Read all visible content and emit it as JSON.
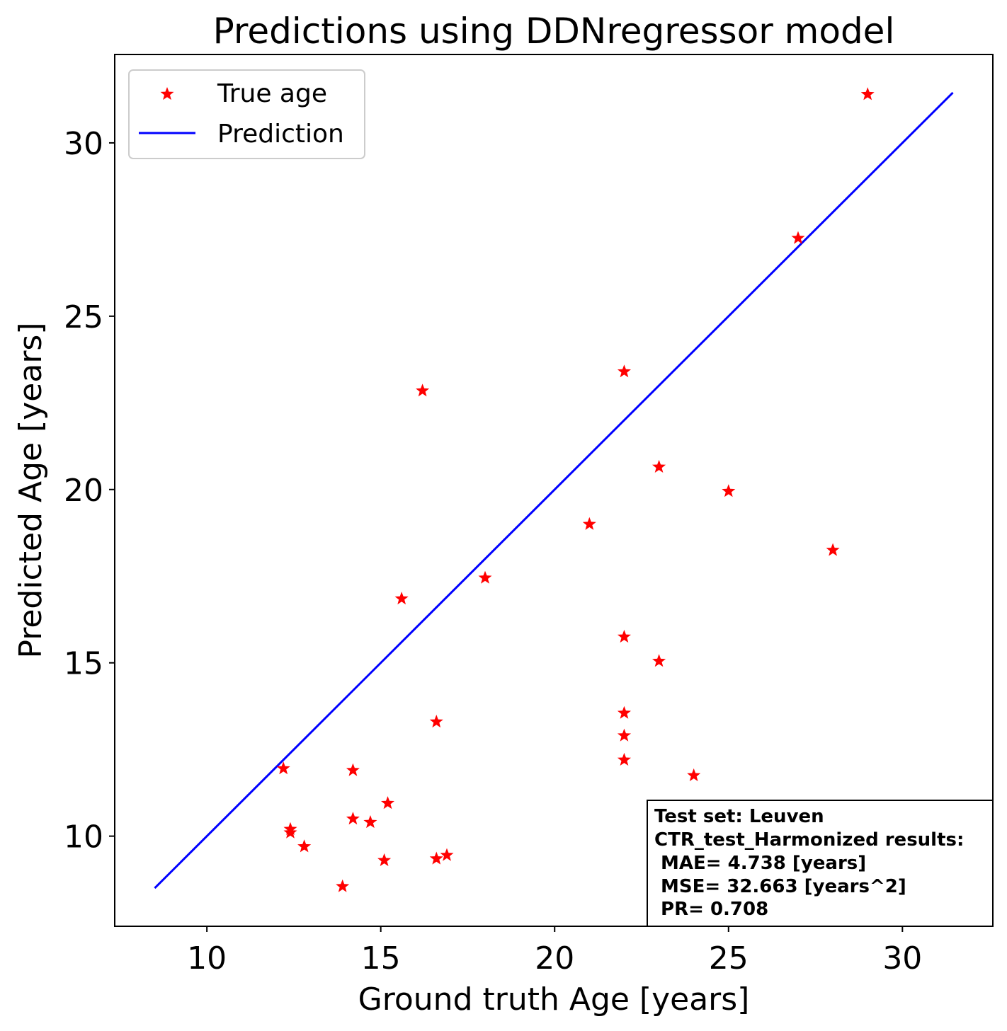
{
  "chart_data": {
    "type": "scatter",
    "title": "Predictions using DDNregressor model",
    "xlabel": "Ground truth Age [years]",
    "ylabel": "Predicted Age [years]",
    "xlim": [
      7.35,
      32.6
    ],
    "ylim": [
      7.4,
      32.55
    ],
    "xticks": [
      10,
      15,
      20,
      25,
      30
    ],
    "yticks": [
      10,
      15,
      20,
      25,
      30
    ],
    "grid": false,
    "legend_position": "top-left",
    "series": [
      {
        "name": "True age",
        "kind": "scatter",
        "marker": "star",
        "color": "#ff0000",
        "points": [
          {
            "x": 12.2,
            "y": 11.95
          },
          {
            "x": 12.4,
            "y": 10.2
          },
          {
            "x": 12.4,
            "y": 10.1
          },
          {
            "x": 12.8,
            "y": 9.7
          },
          {
            "x": 13.9,
            "y": 8.55
          },
          {
            "x": 14.2,
            "y": 11.9
          },
          {
            "x": 14.2,
            "y": 10.5
          },
          {
            "x": 14.7,
            "y": 10.4
          },
          {
            "x": 15.1,
            "y": 9.3
          },
          {
            "x": 15.2,
            "y": 10.95
          },
          {
            "x": 15.6,
            "y": 16.85
          },
          {
            "x": 16.2,
            "y": 22.85
          },
          {
            "x": 16.6,
            "y": 13.3
          },
          {
            "x": 16.6,
            "y": 9.35
          },
          {
            "x": 16.9,
            "y": 9.45
          },
          {
            "x": 18.0,
            "y": 17.45
          },
          {
            "x": 21.0,
            "y": 19.0
          },
          {
            "x": 22.0,
            "y": 23.4
          },
          {
            "x": 22.0,
            "y": 15.75
          },
          {
            "x": 22.0,
            "y": 13.55
          },
          {
            "x": 22.0,
            "y": 12.9
          },
          {
            "x": 22.0,
            "y": 12.2
          },
          {
            "x": 23.0,
            "y": 20.65
          },
          {
            "x": 23.0,
            "y": 15.05
          },
          {
            "x": 24.0,
            "y": 11.75
          },
          {
            "x": 25.0,
            "y": 19.95
          },
          {
            "x": 27.0,
            "y": 27.25
          },
          {
            "x": 28.0,
            "y": 18.25
          },
          {
            "x": 29.0,
            "y": 31.4
          }
        ]
      },
      {
        "name": "Prediction",
        "kind": "line",
        "color": "#0000ff",
        "points": [
          {
            "x": 8.5,
            "y": 8.5
          },
          {
            "x": 31.45,
            "y": 31.45
          }
        ]
      }
    ],
    "annotation": {
      "lines": [
        "Test set: Leuven",
        "CTR_test_Harmonized results:",
        " MAE= 4.738 [years]",
        " MSE= 32.663 [years^2]",
        " PR= 0.708"
      ]
    }
  }
}
